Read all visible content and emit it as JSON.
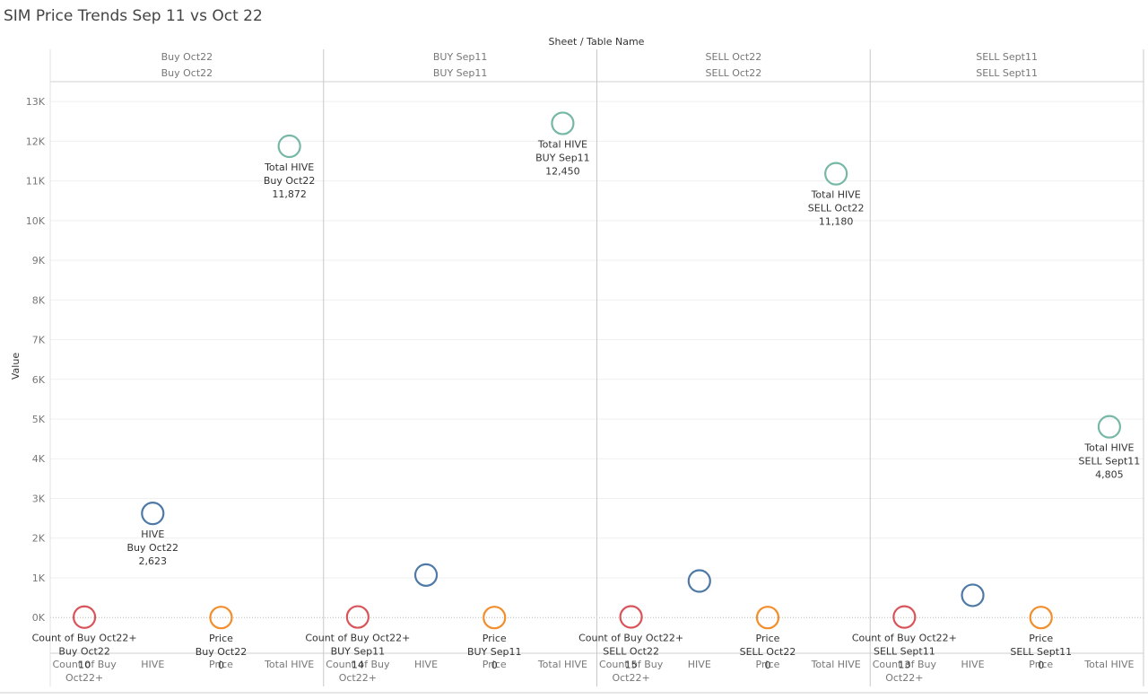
{
  "chart_data": {
    "type": "scatter",
    "title": "SIM Price Trends Sep 11 vs Oct 22",
    "column_header_title": "Sheet / Table Name",
    "ylabel": "Value",
    "ylim": [
      -900,
      13500
    ],
    "y_ticks": [
      {
        "value": 0,
        "label": "0K"
      },
      {
        "value": 1000,
        "label": "1K"
      },
      {
        "value": 2000,
        "label": "2K"
      },
      {
        "value": 3000,
        "label": "3K"
      },
      {
        "value": 4000,
        "label": "4K"
      },
      {
        "value": 5000,
        "label": "5K"
      },
      {
        "value": 6000,
        "label": "6K"
      },
      {
        "value": 7000,
        "label": "7K"
      },
      {
        "value": 8000,
        "label": "8K"
      },
      {
        "value": 9000,
        "label": "9K"
      },
      {
        "value": 10000,
        "label": "10K"
      },
      {
        "value": 11000,
        "label": "11K"
      },
      {
        "value": 12000,
        "label": "12K"
      },
      {
        "value": 13000,
        "label": "13K"
      }
    ],
    "categories": [
      "Count of Buy Oct22+",
      "HIVE",
      "Price",
      "Total HIVE"
    ],
    "category_labels": [
      [
        "Count of Buy",
        "Oct22+"
      ],
      [
        "HIVE"
      ],
      [
        "Price"
      ],
      [
        "Total HIVE"
      ]
    ],
    "colors": {
      "Count of Buy Oct22+": "#d9545a",
      "HIVE": "#4e79a7",
      "Price": "#f28e2b",
      "Total HIVE": "#76b7a6"
    },
    "panels": [
      {
        "header": [
          "Buy Oct22",
          "Buy Oct22"
        ],
        "points": [
          {
            "category": "Count of Buy Oct22+",
            "value": 10,
            "labels": [
              "Count of Buy Oct22+",
              "Buy Oct22",
              "10"
            ]
          },
          {
            "category": "HIVE",
            "value": 2623,
            "labels": [
              "HIVE",
              "Buy Oct22",
              "2,623"
            ]
          },
          {
            "category": "Price",
            "value": 0,
            "labels": [
              "Price",
              "Buy Oct22",
              "0"
            ]
          },
          {
            "category": "Total HIVE",
            "value": 11872,
            "labels": [
              "Total HIVE",
              "Buy Oct22",
              "11,872"
            ]
          }
        ]
      },
      {
        "header": [
          "BUY Sep11",
          "BUY Sep11"
        ],
        "points": [
          {
            "category": "Count of Buy Oct22+",
            "value": 14,
            "labels": [
              "Count of Buy Oct22+",
              "BUY Sep11",
              "14"
            ]
          },
          {
            "category": "HIVE",
            "value": 1070,
            "labels": []
          },
          {
            "category": "Price",
            "value": 0,
            "labels": [
              "Price",
              "BUY Sep11",
              "0"
            ]
          },
          {
            "category": "Total HIVE",
            "value": 12450,
            "labels": [
              "Total HIVE",
              "BUY Sep11",
              "12,450"
            ]
          }
        ]
      },
      {
        "header": [
          "SELL Oct22",
          "SELL Oct22"
        ],
        "points": [
          {
            "category": "Count of Buy Oct22+",
            "value": 15,
            "labels": [
              "Count of Buy Oct22+",
              "SELL Oct22",
              "15"
            ]
          },
          {
            "category": "HIVE",
            "value": 920,
            "labels": []
          },
          {
            "category": "Price",
            "value": 0,
            "labels": [
              "Price",
              "SELL Oct22",
              "0"
            ]
          },
          {
            "category": "Total HIVE",
            "value": 11180,
            "labels": [
              "Total HIVE",
              "SELL Oct22",
              "11,180"
            ]
          }
        ]
      },
      {
        "header": [
          "SELL Sept11",
          "SELL Sept11"
        ],
        "points": [
          {
            "category": "Count of Buy Oct22+",
            "value": 13,
            "labels": [
              "Count of Buy Oct22+",
              "SELL Sept11",
              "13"
            ]
          },
          {
            "category": "HIVE",
            "value": 560,
            "labels": []
          },
          {
            "category": "Price",
            "value": 0,
            "labels": [
              "Price",
              "SELL Sept11",
              "0"
            ]
          },
          {
            "category": "Total HIVE",
            "value": 4805,
            "labels": [
              "Total HIVE",
              "SELL Sept11",
              "4,805"
            ]
          }
        ]
      }
    ]
  }
}
